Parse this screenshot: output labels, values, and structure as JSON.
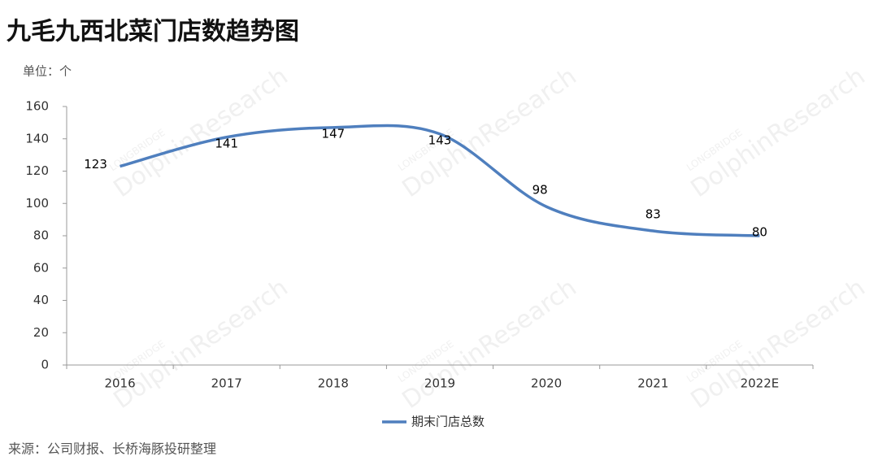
{
  "chart_data": {
    "type": "line",
    "title": "九毛九西北菜门店数趋势图",
    "unit_label": "单位：个",
    "source": "来源：公司财报、长桥海豚投研整理",
    "categories": [
      "2016",
      "2017",
      "2018",
      "2019",
      "2020",
      "2021",
      "2022E"
    ],
    "series": [
      {
        "name": "期末门店总数",
        "color": "#4f7fbe",
        "values": [
          123,
          141,
          147,
          143,
          98,
          83,
          80
        ]
      }
    ],
    "ylim": [
      0,
      160
    ],
    "yticks": [
      0,
      20,
      40,
      60,
      80,
      100,
      120,
      140,
      160
    ],
    "smooth": true,
    "legend": "bottom",
    "watermark": [
      "LONGBRIDGE",
      "DolphinResearch"
    ]
  }
}
